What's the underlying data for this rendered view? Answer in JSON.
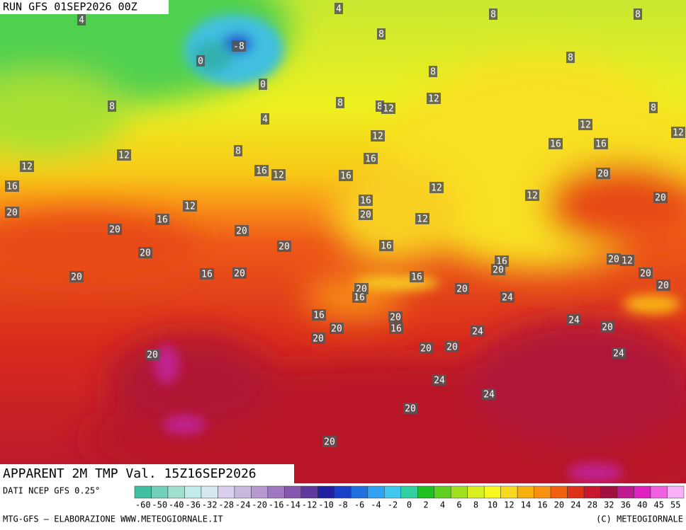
{
  "header": {
    "run": "RUN GFS 01SEP2026 00Z"
  },
  "map": {
    "title": "APPARENT 2M TMP Val. 15Z16SEP2026",
    "contour_labels": [
      4,
      4,
      8,
      8,
      8,
      -8,
      0,
      0,
      8,
      8,
      8,
      4,
      8,
      8,
      12,
      12,
      8,
      12,
      12,
      12,
      16,
      16,
      12,
      8,
      16,
      16,
      12,
      16,
      12,
      20,
      16,
      12,
      12,
      20,
      16,
      12,
      20,
      20,
      16,
      12,
      20,
      20,
      20,
      16,
      20,
      16,
      20,
      12,
      20,
      20,
      16,
      20,
      20,
      16,
      20,
      20,
      16,
      20,
      24,
      16,
      20,
      24,
      20,
      16,
      20,
      20,
      24,
      20,
      20,
      24,
      20,
      24,
      24,
      20,
      20
    ]
  },
  "legend": {
    "source": "DATI NCEP GFS 0.25°",
    "ticks": [
      -60,
      -50,
      -40,
      -36,
      -32,
      -28,
      -24,
      -20,
      -16,
      -14,
      -12,
      -10,
      -8,
      -6,
      -4,
      -2,
      0,
      2,
      4,
      6,
      8,
      10,
      12,
      14,
      16,
      20,
      24,
      28,
      32,
      36,
      40,
      45,
      55
    ],
    "colors": [
      "#40c0a0",
      "#70d0b8",
      "#a0e0d0",
      "#c0ecec",
      "#d8e8f0",
      "#d8d0ec",
      "#c8b8e0",
      "#b898d0",
      "#a078c0",
      "#8858b0",
      "#6038a0",
      "#2020a0",
      "#1840c8",
      "#2070e0",
      "#30a0f0",
      "#40c8f0",
      "#30d0a0",
      "#20c020",
      "#60d020",
      "#a0e020",
      "#d8f020",
      "#f8f820",
      "#f8d820",
      "#f8b010",
      "#f89010",
      "#f06010",
      "#e03018",
      "#c81830",
      "#a01040",
      "#c01890",
      "#e020c0",
      "#f060e0",
      "#f8b0f8"
    ]
  },
  "footer": {
    "left": "MTG-GFS — ELABORAZIONE WWW.METEOGIORNALE.IT",
    "right": "(C) METEOGIORNALE"
  }
}
